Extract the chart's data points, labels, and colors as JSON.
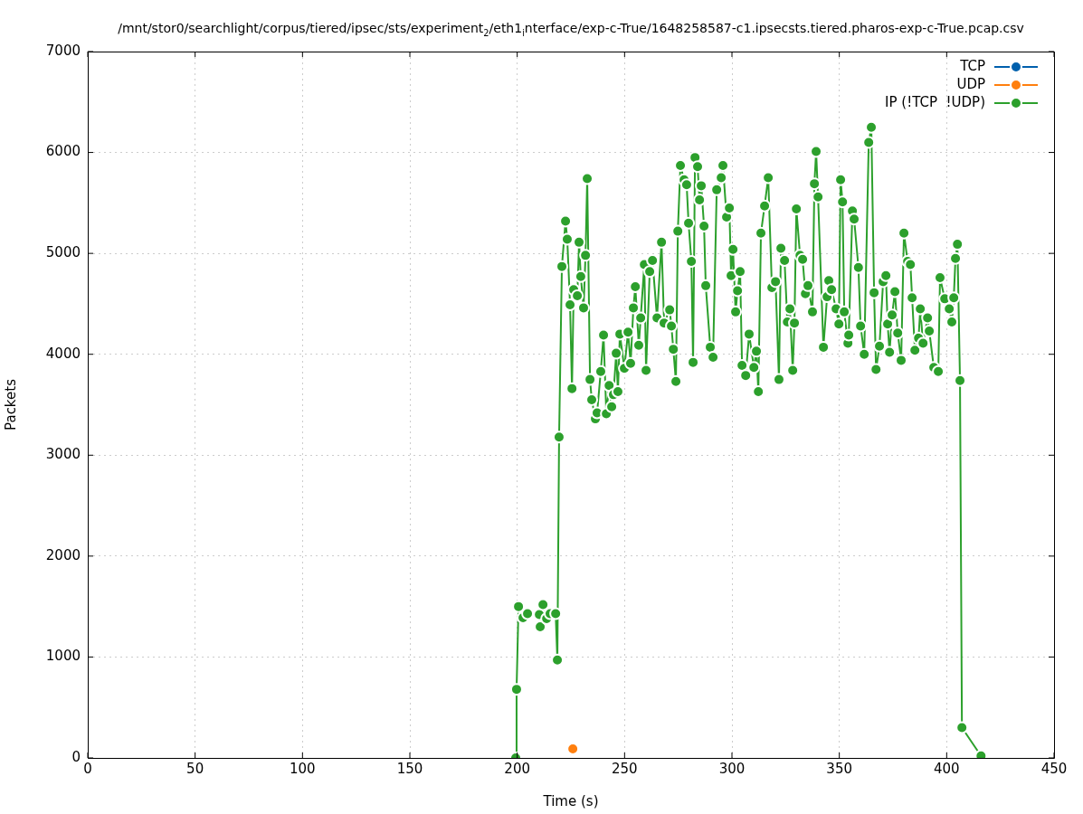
{
  "chart_data": {
    "type": "line",
    "title": "/mnt/stor0/searchlight/corpus/tiered/ipsec/sts/experiment$_{2}$/eth1$_{i}$nterface/exp-c-True/1648258587-c1.ipsecsts.tiered.pharos-exp-c-True.pcap.csv",
    "xlabel": "Time (s)",
    "ylabel": "Packets",
    "xlim": [
      0,
      450
    ],
    "xticks": [
      0,
      50,
      100,
      150,
      200,
      250,
      300,
      350,
      400,
      450
    ],
    "ylim": [
      0,
      7000
    ],
    "yticks": [
      0,
      1000,
      2000,
      3000,
      4000,
      5000,
      6000,
      7000
    ],
    "grid": true,
    "legend": "top right",
    "marker": "circle",
    "line_style": "solid",
    "series": [
      {
        "name": "TCP",
        "color": "#0060ad"
      },
      {
        "name": "UDP",
        "color": "#ff7f0e",
        "x": [
          225.9
        ],
        "values": [
          90
        ]
      },
      {
        "name": "IP (!TCP  !UDP)",
        "color": "#2ca02c",
        "x": [
          199.3,
          199.7,
          200.6,
          202.7,
          204.8,
          210.3,
          210.7,
          212,
          213.7,
          215.3,
          217.9,
          218.7,
          219.5,
          220.8,
          222.5,
          223.3,
          224.6,
          225.5,
          226.3,
          228,
          228.8,
          229.6,
          230.9,
          231.8,
          232.6,
          233.9,
          234.7,
          236.4,
          237.2,
          238.9,
          240.2,
          241.5,
          242.8,
          244,
          244.8,
          246.1,
          246.9,
          247.8,
          249.9,
          251.6,
          252.8,
          254.1,
          255,
          256.6,
          257.5,
          259.2,
          260,
          261.7,
          263,
          265.1,
          267.2,
          268.4,
          271,
          271.8,
          272.7,
          273.9,
          274.8,
          276,
          277.7,
          278.9,
          279.8,
          281.1,
          281.9,
          282.8,
          284,
          284.9,
          285.7,
          287,
          287.8,
          289.9,
          291.2,
          292.9,
          295,
          295.8,
          297.5,
          298.8,
          299.6,
          300.5,
          301.7,
          302.6,
          303.8,
          304.7,
          306.4,
          308,
          310.2,
          311.4,
          312.3,
          313.5,
          315.2,
          316.9,
          318.6,
          320.3,
          321.9,
          322.8,
          324.5,
          325.8,
          327,
          328.3,
          329.1,
          330,
          331.7,
          332.9,
          334.2,
          335.4,
          337.5,
          338.4,
          339.2,
          340.1,
          342.6,
          344.3,
          345.1,
          346.4,
          348.5,
          349.8,
          350.6,
          351.5,
          352.3,
          354,
          354.4,
          356.1,
          356.9,
          358.9,
          359.9,
          361.6,
          363.7,
          364.9,
          366.2,
          367.1,
          368.7,
          370.4,
          371.7,
          372.5,
          373.4,
          374.6,
          375.9,
          377.2,
          378.8,
          380.1,
          381.8,
          383.1,
          383.9,
          385.2,
          386.9,
          387.7,
          389,
          391.1,
          391.9,
          394,
          396.1,
          396.9,
          399.1,
          401.2,
          402.4,
          403.3,
          404.1,
          405,
          406.2,
          407.1,
          416
        ],
        "values": [
          0,
          680,
          1500,
          1390,
          1430,
          1420,
          1300,
          1520,
          1380,
          1430,
          1430,
          970,
          3180,
          4870,
          5320,
          5140,
          4490,
          3660,
          4640,
          4580,
          5110,
          4770,
          4460,
          4980,
          5740,
          3750,
          3550,
          3360,
          3420,
          3830,
          4190,
          3410,
          3690,
          3480,
          3600,
          4010,
          3630,
          4200,
          3860,
          4220,
          3910,
          4460,
          4670,
          4090,
          4360,
          4890,
          3840,
          4820,
          4930,
          4360,
          5110,
          4310,
          4440,
          4280,
          4050,
          3730,
          5220,
          5870,
          5730,
          5680,
          5300,
          4920,
          3920,
          5950,
          5860,
          5530,
          5670,
          5270,
          4680,
          4070,
          3970,
          5630,
          5750,
          5870,
          5360,
          5450,
          4780,
          5040,
          4420,
          4630,
          4820,
          3890,
          3790,
          4200,
          3870,
          4030,
          3630,
          5200,
          5470,
          5750,
          4660,
          4720,
          3750,
          5050,
          4930,
          4320,
          4450,
          3840,
          4310,
          5440,
          4980,
          4940,
          4600,
          4680,
          4420,
          5690,
          6010,
          5560,
          4070,
          4570,
          4730,
          4640,
          4450,
          4300,
          5730,
          5510,
          4420,
          4110,
          4190,
          5420,
          5340,
          4860,
          4280,
          4000,
          6100,
          6250,
          4610,
          3850,
          4080,
          4720,
          4780,
          4300,
          4020,
          4390,
          4620,
          4210,
          3940,
          5200,
          4920,
          4890,
          4560,
          4040,
          4160,
          4450,
          4110,
          4360,
          4230,
          3870,
          3830,
          4760,
          4550,
          4450,
          4320,
          4560,
          4950,
          5090,
          3740,
          300,
          20
        ]
      }
    ]
  }
}
